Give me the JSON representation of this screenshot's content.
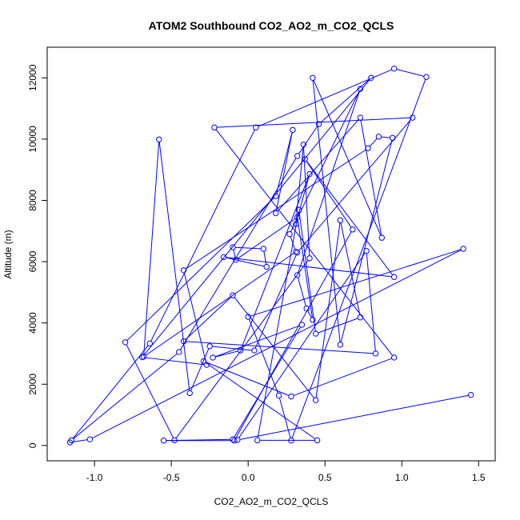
{
  "chart_data": {
    "type": "line",
    "title": "ATOM2 Southbound CO2_AO2_m_CO2_QCLS",
    "xlabel": "CO2_AO2_m_CO2_QCLS",
    "ylabel": "Altitude (m)",
    "xlim": [
      -1.2,
      1.5
    ],
    "ylim": [
      0,
      12500
    ],
    "x_ticks": [
      -1.0,
      -0.5,
      0.0,
      0.5,
      1.0,
      1.5
    ],
    "x_tick_labels": [
      "-1.0",
      "-0.5",
      "0.0",
      "0.5",
      "1.0",
      "1.5"
    ],
    "y_ticks": [
      0,
      2000,
      4000,
      6000,
      8000,
      10000,
      12000
    ],
    "y_tick_labels": [
      "0",
      "2000",
      "4000",
      "6000",
      "8000",
      "10000",
      "12000"
    ],
    "grid": false,
    "legend": "none",
    "series_color": "#0000ff",
    "series": [
      {
        "marker": "open-circle",
        "x": [
          -1.16,
          -1.03,
          1.4,
          0.0,
          0.2,
          0.28,
          1.16,
          0.95,
          0.05,
          -0.64,
          -1.15,
          -0.45,
          0.32,
          0.46,
          0.8,
          -0.69,
          -0.27,
          -0.42,
          0.78,
          0.85,
          0.94,
          0.6,
          0.42,
          0.87,
          0.73,
          0.18,
          0.29,
          0.18,
          -0.8,
          -0.48,
          0.4,
          0.36,
          0.31,
          0.4,
          -0.05,
          -0.23,
          0.35,
          -0.1,
          -0.55,
          -0.09,
          0.68,
          0.37,
          0.95,
          -0.16,
          0.12,
          0.1,
          -0.1,
          -0.08,
          0.32,
          0.42,
          0.38,
          0.32,
          0.73,
          0.27,
          0.31,
          -0.68,
          -0.58,
          -0.38,
          -0.25,
          0.04,
          0.32,
          1.07,
          -0.22,
          0.95,
          0.28,
          -0.29,
          0.45,
          0.06,
          0.33,
          0.44,
          0.73,
          0.6,
          0.44,
          -0.1,
          -0.42,
          0.83,
          0.77,
          -0.07,
          1.45
        ],
        "y": [
          100,
          200,
          6420,
          4200,
          1630,
          160,
          12030,
          12300,
          10380,
          3330,
          170,
          3050,
          9450,
          10490,
          12000,
          2880,
          2630,
          5720,
          9700,
          10080,
          10040,
          3290,
          12000,
          6780,
          10700,
          7580,
          10300,
          8140,
          3370,
          170,
          6110,
          9820,
          7230,
          8860,
          3100,
          2870,
          3940,
          200,
          160,
          160,
          7050,
          9350,
          5500,
          6150,
          5830,
          6420,
          6470,
          6060,
          7450,
          4100,
          4470,
          5560,
          11640,
          6900,
          6320,
          2900,
          9990,
          1710,
          3240,
          3100,
          6300,
          10700,
          10380,
          2870,
          1600,
          2750,
          170,
          170,
          7690,
          3650,
          4180,
          7350,
          1480,
          4900,
          3400,
          3000,
          6350,
          180,
          1650
        ]
      }
    ]
  }
}
